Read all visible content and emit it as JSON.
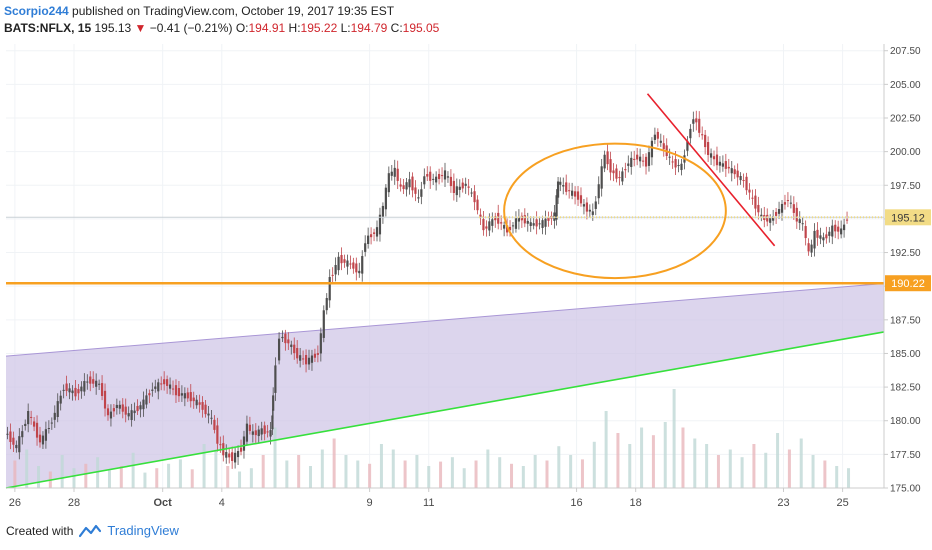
{
  "header": {
    "author": "Scorpio244",
    "published": "published on TradingView.com, October 19, 2017 19:35 EST",
    "symbol": "BATS:NFLX, 15",
    "last": "195.13",
    "change": "−0.41 (−0.21%)",
    "o_label": "O:",
    "o": "194.91",
    "h_label": "H:",
    "h": "195.22",
    "l_label": "L:",
    "l": "194.79",
    "c_label": "C:",
    "c": "195.05"
  },
  "footer": {
    "created": "Created with",
    "brand": "TradingView"
  },
  "colors": {
    "up": "#4e4e4e",
    "down": "#c0454b",
    "orange": "#f7a021",
    "red": "#e8212d",
    "green": "#36e03c",
    "channel_fill": "#cdc3e6",
    "channel_edge": "#a996d6",
    "dotted": "#f2dc86",
    "current_line": "#c9d0d6",
    "axis": "#cccccc"
  },
  "chart_data": {
    "type": "candlestick",
    "title": "BATS:NFLX, 15",
    "ylim": [
      175,
      208
    ],
    "yticks": [
      "207.50",
      "205.00",
      "202.50",
      "200.00",
      "197.50",
      "195.00",
      "192.50",
      "190.00",
      "187.50",
      "185.00",
      "182.50",
      "180.00",
      "177.50",
      "175.00"
    ],
    "xticks": [
      "26",
      "28",
      "Oct",
      "4",
      "9",
      "11",
      "16",
      "18",
      "23",
      "25"
    ],
    "xtick_days": [
      0,
      2,
      5,
      7,
      12,
      14,
      19,
      21,
      26,
      28
    ],
    "x_domain": [
      -0.3,
      29.4
    ],
    "price_labels": {
      "current": "195.12",
      "support": "190.22"
    },
    "levels": {
      "current": 195.12,
      "support": 190.22
    },
    "channel": {
      "start_day": -0.3,
      "end_day": 29.4,
      "lower_start": 175.0,
      "lower_end": 186.6,
      "upper_start": 184.8,
      "upper_end": 190.2
    },
    "resistance_line": {
      "from_day": 21.4,
      "from_price": 204.3,
      "to_day": 25.7,
      "to_price": 193.0
    },
    "ellipse": {
      "center_day": 20.3,
      "center_price": 195.6,
      "half_width_days": 3.75,
      "half_height_price": 5.0
    },
    "series": [
      {
        "name": "close",
        "points": [
          [
            -0.3,
            179.2
          ],
          [
            0.1,
            178.0
          ],
          [
            0.5,
            180.6
          ],
          [
            0.9,
            178.4
          ],
          [
            1.3,
            180.0
          ],
          [
            1.7,
            182.5
          ],
          [
            2.1,
            182.0
          ],
          [
            2.5,
            183.0
          ],
          [
            2.9,
            182.7
          ],
          [
            3.2,
            180.3
          ],
          [
            3.5,
            181.2
          ],
          [
            3.9,
            180.4
          ],
          [
            4.3,
            181.1
          ],
          [
            4.7,
            182.4
          ],
          [
            5.1,
            182.9
          ],
          [
            5.5,
            182.1
          ],
          [
            5.9,
            181.8
          ],
          [
            6.3,
            181.2
          ],
          [
            6.7,
            180.1
          ],
          [
            6.9,
            178.5
          ],
          [
            7.1,
            177.6
          ],
          [
            7.4,
            177.2
          ],
          [
            7.7,
            177.9
          ],
          [
            7.9,
            179.6
          ],
          [
            8.1,
            179.0
          ],
          [
            8.4,
            179.3
          ],
          [
            8.7,
            179.1
          ],
          [
            8.75,
            182.0
          ],
          [
            9.0,
            186.3
          ],
          [
            9.3,
            185.8
          ],
          [
            9.6,
            184.8
          ],
          [
            9.9,
            184.4
          ],
          [
            10.3,
            185.0
          ],
          [
            10.5,
            188.0
          ],
          [
            10.7,
            190.5
          ],
          [
            11.0,
            192.0
          ],
          [
            11.4,
            191.6
          ],
          [
            11.7,
            191.0
          ],
          [
            11.9,
            193.4
          ],
          [
            12.3,
            194.2
          ],
          [
            12.5,
            196.0
          ],
          [
            12.7,
            198.3
          ],
          [
            12.9,
            198.6
          ],
          [
            13.1,
            197.2
          ],
          [
            13.4,
            197.8
          ],
          [
            13.7,
            196.4
          ],
          [
            13.9,
            198.3
          ],
          [
            14.2,
            197.9
          ],
          [
            14.6,
            198.4
          ],
          [
            14.9,
            197.1
          ],
          [
            15.3,
            197.6
          ],
          [
            15.6,
            196.4
          ],
          [
            15.9,
            194.2
          ],
          [
            16.3,
            195.1
          ],
          [
            16.7,
            194.1
          ],
          [
            17.1,
            195.1
          ],
          [
            17.5,
            194.6
          ],
          [
            17.9,
            194.7
          ],
          [
            18.3,
            195.3
          ],
          [
            18.4,
            197.8
          ],
          [
            18.7,
            197.2
          ],
          [
            19.1,
            196.6
          ],
          [
            19.3,
            195.9
          ],
          [
            19.6,
            195.4
          ],
          [
            20.0,
            199.8
          ],
          [
            20.2,
            198.6
          ],
          [
            20.5,
            198.0
          ],
          [
            20.8,
            199.2
          ],
          [
            21.1,
            199.6
          ],
          [
            21.4,
            199.1
          ],
          [
            21.7,
            201.4
          ],
          [
            22.0,
            200.2
          ],
          [
            22.3,
            199.1
          ],
          [
            22.6,
            198.9
          ],
          [
            22.8,
            200.9
          ],
          [
            23.0,
            202.6
          ],
          [
            23.2,
            201.6
          ],
          [
            23.5,
            199.9
          ],
          [
            23.8,
            199.2
          ],
          [
            24.1,
            198.9
          ],
          [
            24.4,
            198.4
          ],
          [
            24.7,
            197.8
          ],
          [
            25.0,
            196.4
          ],
          [
            25.3,
            195.1
          ],
          [
            25.6,
            194.9
          ],
          [
            25.9,
            195.7
          ],
          [
            26.2,
            196.5
          ],
          [
            26.5,
            195.0
          ],
          [
            26.7,
            194.6
          ],
          [
            26.9,
            192.4
          ],
          [
            27.1,
            193.9
          ],
          [
            27.4,
            193.5
          ],
          [
            27.7,
            194.3
          ],
          [
            28.0,
            194.1
          ],
          [
            28.2,
            195.13
          ]
        ]
      },
      {
        "name": "volume",
        "points": [
          [
            0.0,
            0.25
          ],
          [
            0.4,
            0.35
          ],
          [
            0.8,
            0.2
          ],
          [
            1.2,
            0.15
          ],
          [
            1.6,
            0.3
          ],
          [
            2.0,
            0.18
          ],
          [
            2.4,
            0.22
          ],
          [
            2.8,
            0.28
          ],
          [
            3.2,
            0.16
          ],
          [
            3.6,
            0.2
          ],
          [
            4.0,
            0.32
          ],
          [
            4.4,
            0.14
          ],
          [
            4.8,
            0.18
          ],
          [
            5.2,
            0.22
          ],
          [
            5.6,
            0.26
          ],
          [
            6.0,
            0.17
          ],
          [
            6.4,
            0.4
          ],
          [
            6.8,
            0.35
          ],
          [
            7.2,
            0.2
          ],
          [
            7.6,
            0.15
          ],
          [
            8.0,
            0.18
          ],
          [
            8.4,
            0.3
          ],
          [
            8.8,
            0.55
          ],
          [
            9.2,
            0.25
          ],
          [
            9.6,
            0.3
          ],
          [
            10.0,
            0.2
          ],
          [
            10.4,
            0.35
          ],
          [
            10.8,
            0.45
          ],
          [
            11.2,
            0.3
          ],
          [
            11.6,
            0.25
          ],
          [
            12.0,
            0.22
          ],
          [
            12.4,
            0.4
          ],
          [
            12.8,
            0.35
          ],
          [
            13.2,
            0.25
          ],
          [
            13.6,
            0.3
          ],
          [
            14.0,
            0.2
          ],
          [
            14.4,
            0.24
          ],
          [
            14.8,
            0.28
          ],
          [
            15.2,
            0.18
          ],
          [
            15.6,
            0.25
          ],
          [
            16.0,
            0.35
          ],
          [
            16.4,
            0.28
          ],
          [
            16.8,
            0.22
          ],
          [
            17.2,
            0.2
          ],
          [
            17.6,
            0.3
          ],
          [
            18.0,
            0.25
          ],
          [
            18.4,
            0.38
          ],
          [
            18.8,
            0.3
          ],
          [
            19.2,
            0.26
          ],
          [
            19.6,
            0.42
          ],
          [
            20.0,
            0.7
          ],
          [
            20.4,
            0.5
          ],
          [
            20.8,
            0.4
          ],
          [
            21.2,
            0.55
          ],
          [
            21.6,
            0.48
          ],
          [
            22.0,
            0.6
          ],
          [
            22.3,
            0.9
          ],
          [
            22.6,
            0.55
          ],
          [
            23.0,
            0.45
          ],
          [
            23.4,
            0.4
          ],
          [
            23.8,
            0.3
          ],
          [
            24.2,
            0.35
          ],
          [
            24.6,
            0.28
          ],
          [
            25.0,
            0.4
          ],
          [
            25.4,
            0.32
          ],
          [
            25.8,
            0.5
          ],
          [
            26.2,
            0.35
          ],
          [
            26.6,
            0.45
          ],
          [
            27.0,
            0.3
          ],
          [
            27.4,
            0.25
          ],
          [
            27.8,
            0.2
          ],
          [
            28.2,
            0.18
          ]
        ]
      }
    ]
  }
}
